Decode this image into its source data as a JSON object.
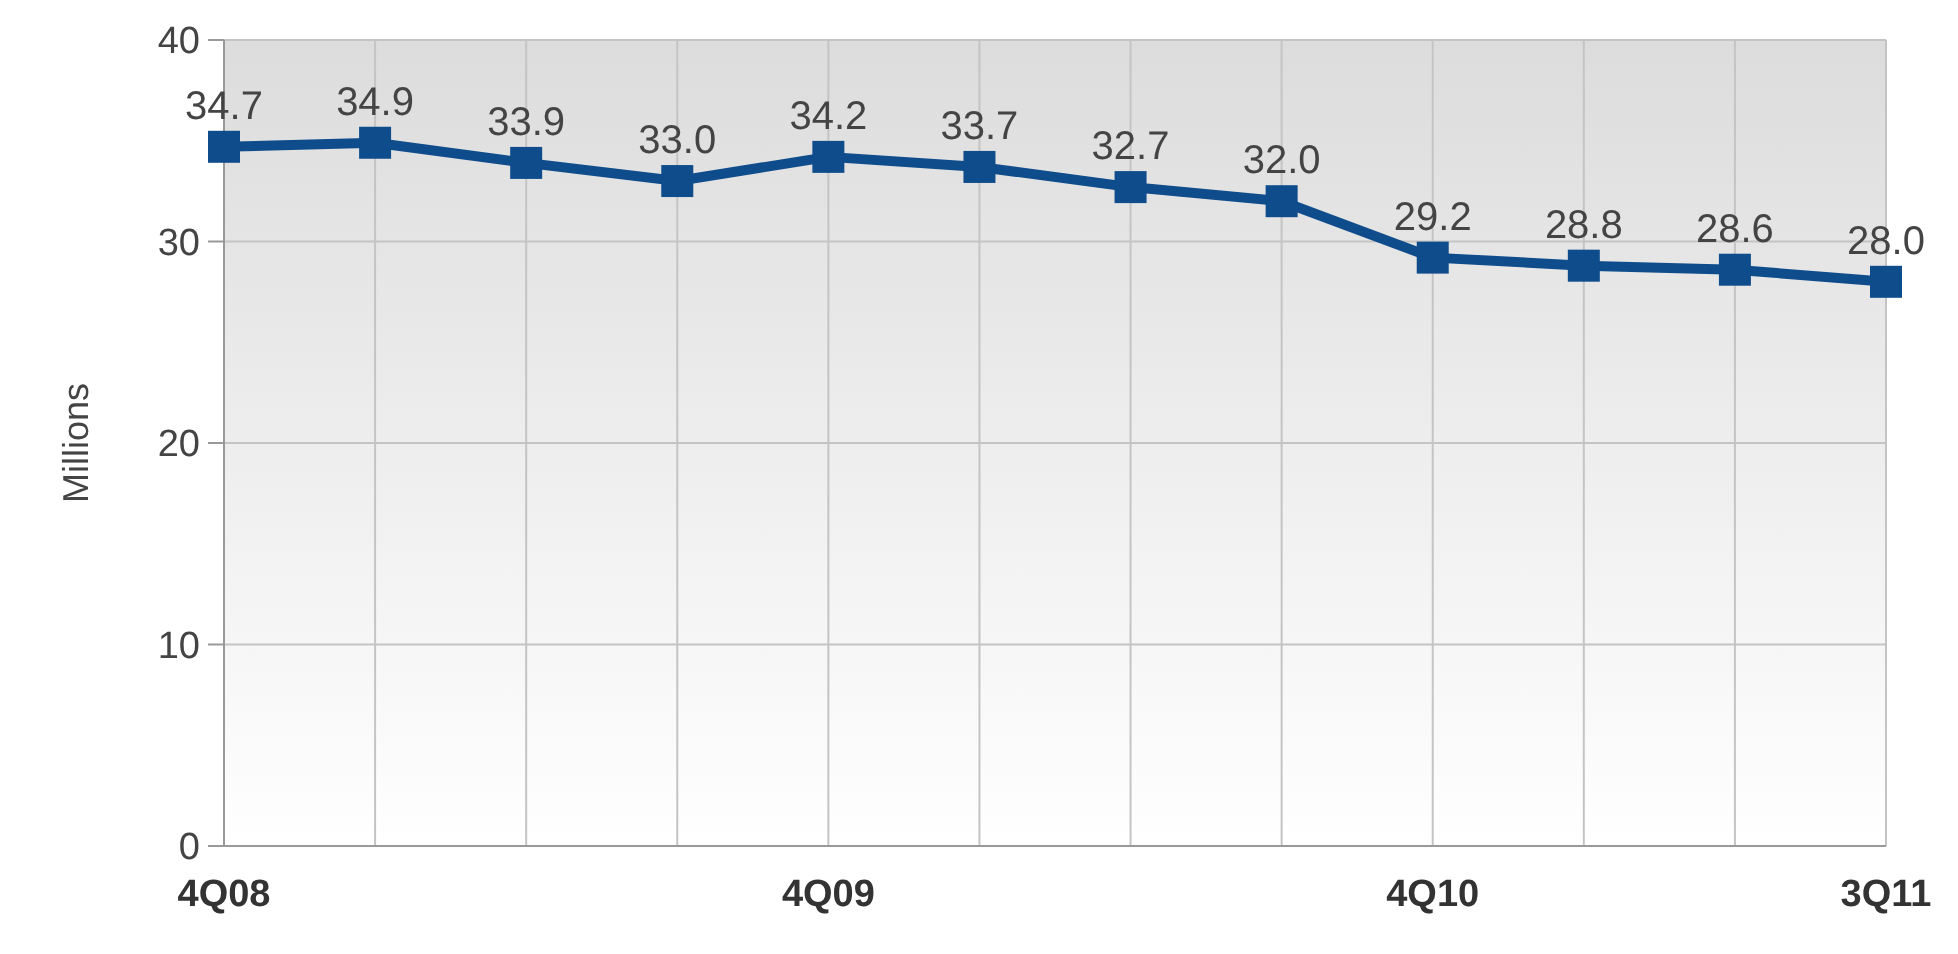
{
  "chart_data": {
    "type": "line",
    "ylabel": "Millions",
    "categories": [
      "4Q08",
      null,
      null,
      null,
      "4Q09",
      null,
      null,
      null,
      "4Q10",
      null,
      null,
      "3Q11"
    ],
    "series": [
      {
        "color": "#0f4c8c",
        "values": [
          34.7,
          34.9,
          33.9,
          33.0,
          34.2,
          33.7,
          32.7,
          32.0,
          29.2,
          28.8,
          28.6,
          28.0
        ],
        "value_labels": [
          "34.7",
          "34.9",
          "33.9",
          "33.0",
          "34.2",
          "33.7",
          "32.7",
          "32.0",
          "29.2",
          "28.8",
          "28.6",
          "28.0"
        ]
      }
    ],
    "ylim": [
      0,
      40
    ],
    "yticks": [
      0,
      10,
      20,
      30,
      40
    ],
    "grid": true,
    "marker": "square",
    "line_style": "solid"
  }
}
